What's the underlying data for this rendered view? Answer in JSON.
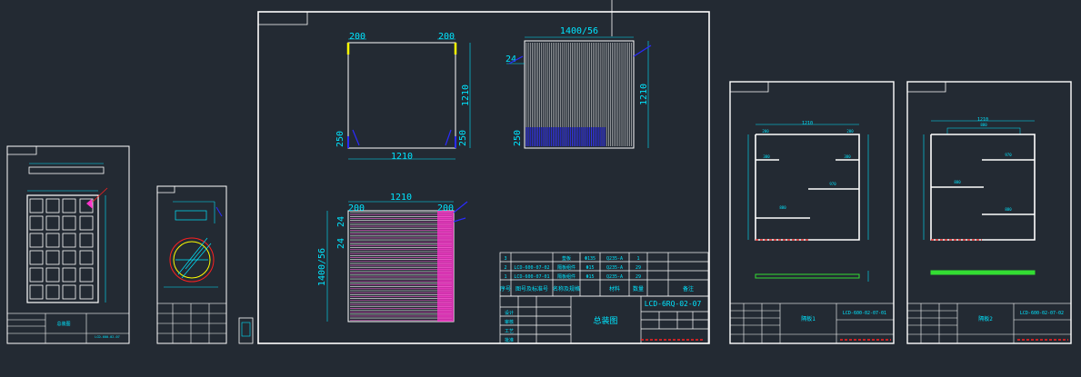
{
  "colors": {
    "background": "#232a33",
    "frame": "#ffffff",
    "dimension": "#00e5ff",
    "marker": "#2b2bff",
    "yellow": "#ffff00",
    "magenta": "#ff33cc",
    "red": "#ff2020",
    "green": "#33dd33"
  },
  "main_sheet": {
    "plate_top_left": {
      "dim_left": "200",
      "dim_right": "200",
      "dim_height": "1210",
      "dim_width": "1210",
      "dim_corner_left": "250",
      "dim_corner_right": "250"
    },
    "plate_top_right": {
      "dim_top": "1400/56",
      "dim_left": "24",
      "dim_height": "1210",
      "dim_bottom_left": "250"
    },
    "plate_bottom": {
      "dim_width": "1210",
      "dim_left": "200",
      "dim_right": "200",
      "dim_height": "1400/56",
      "dim_small_a": "24",
      "dim_small_b": "24"
    },
    "bom": {
      "rows": [
        {
          "no": "3",
          "code": "",
          "name": "垫板",
          "spec": "Φ135",
          "mat": "Q235-A",
          "qty": "1"
        },
        {
          "no": "2",
          "code": "LCD-600-07-02",
          "name": "隔板组件",
          "spec": "Φ15",
          "mat": "Q235-A",
          "qty": "29"
        },
        {
          "no": "1",
          "code": "LCD-600-07-01",
          "name": "隔板组件",
          "spec": "Φ15",
          "mat": "Q235-A",
          "qty": "29"
        }
      ],
      "header": {
        "no": "序号",
        "code": "图号及标准号",
        "name": "名称及规格",
        "mat": "材料",
        "qty": "数量",
        "note": "备注"
      }
    },
    "title_block": {
      "drawing_no": "LCD-6RQ-02-07",
      "title": "总装图",
      "company": "",
      "labels": [
        "设计",
        "审核",
        "工艺",
        "批准"
      ]
    }
  },
  "sheet_right_1": {
    "drawing_no": "LCD-600-02-07-01",
    "title": "隔板1",
    "dims": {
      "top": "1210",
      "a": "200",
      "b": "200",
      "c": "380",
      "d": "380",
      "e": "970",
      "f": "880"
    }
  },
  "sheet_right_2": {
    "drawing_no": "LCD-600-02-07-02",
    "title": "隔板2",
    "dims": {
      "top": "1210",
      "a": "880",
      "b": "970",
      "c": "880",
      "d": "880"
    }
  },
  "sheet_left_1": {
    "title": "总装图",
    "note": "LCD-600-02-07"
  },
  "sheet_left_2": {
    "title": ""
  }
}
